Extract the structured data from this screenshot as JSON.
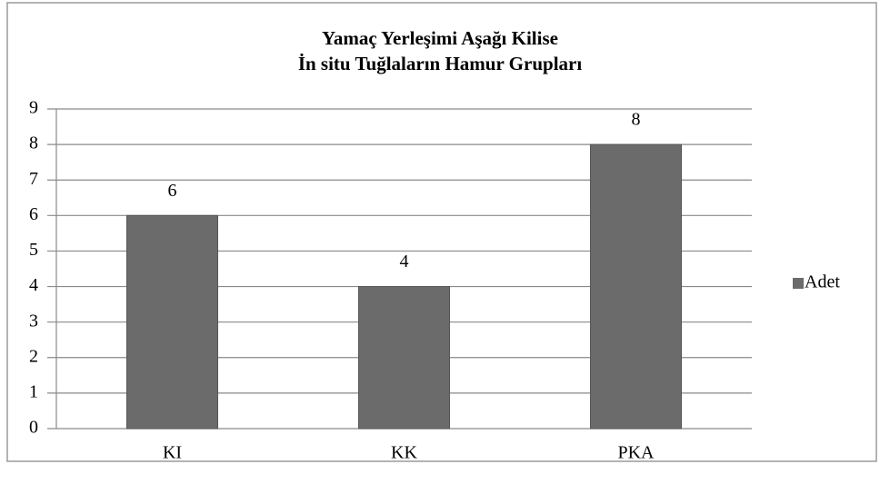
{
  "chart_data": {
    "type": "bar",
    "title": [
      "Yamaç Yerleşimi Aşağı Kilise",
      "İn situ Tuğlaların Hamur Grupları"
    ],
    "categories": [
      "KI",
      "KK",
      "PKA"
    ],
    "series": [
      {
        "name": "Adet",
        "color": "#6b6b6b",
        "values": [
          6,
          4,
          8
        ]
      }
    ],
    "ylim": [
      0,
      9
    ],
    "yticks": [
      0,
      1,
      2,
      3,
      4,
      5,
      6,
      7,
      8,
      9
    ],
    "grid": true,
    "legend": "right"
  }
}
